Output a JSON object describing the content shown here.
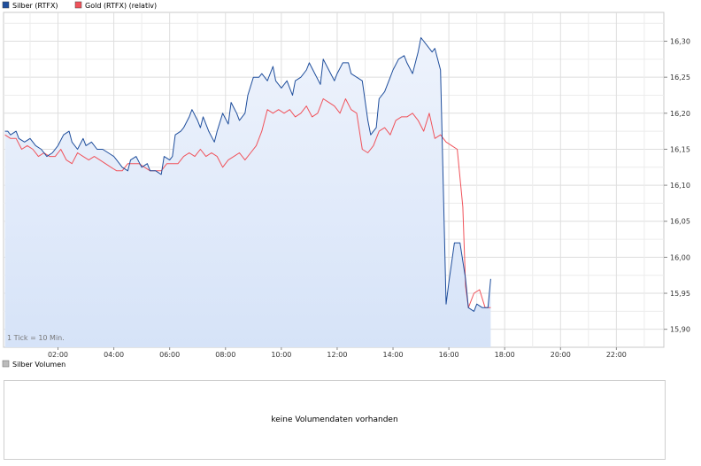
{
  "chart_data": {
    "type": "line",
    "legend": [
      {
        "label": "Silber (RTFX)",
        "color": "#1f4e9c"
      },
      {
        "label": "Gold (RTFX) (relativ)",
        "color": "#f0525a"
      }
    ],
    "x_ticks": [
      "02:00",
      "04:00",
      "06:00",
      "08:00",
      "10:00",
      "12:00",
      "14:00",
      "16:00",
      "18:00",
      "20:00",
      "22:00"
    ],
    "y_ticks": [
      "15,90",
      "15,95",
      "16,00",
      "16,05",
      "16,10",
      "16,15",
      "16,20",
      "16,25",
      "16,30"
    ],
    "ylim": [
      15.875,
      16.34
    ],
    "xlim_hours": [
      0.05,
      23.7
    ],
    "note": "1 Tick = 10 Min.",
    "area_fill_series": "Silber (RTFX)",
    "area_fill_color": "#d6e3f8",
    "grid": true,
    "series": [
      {
        "name": "Silber (RTFX)",
        "color": "#1f4e9c",
        "x": [
          0.1,
          0.2,
          0.3,
          0.5,
          0.6,
          0.8,
          1.0,
          1.2,
          1.4,
          1.6,
          1.8,
          2.0,
          2.2,
          2.4,
          2.5,
          2.7,
          2.9,
          3.0,
          3.2,
          3.4,
          3.6,
          3.8,
          4.0,
          4.1,
          4.3,
          4.5,
          4.6,
          4.8,
          5.0,
          5.2,
          5.3,
          5.5,
          5.7,
          5.8,
          6.0,
          6.1,
          6.2,
          6.4,
          6.5,
          6.7,
          6.8,
          7.0,
          7.1,
          7.2,
          7.4,
          7.6,
          7.7,
          7.9,
          8.1,
          8.2,
          8.4,
          8.5,
          8.7,
          8.8,
          9.0,
          9.2,
          9.3,
          9.5,
          9.7,
          9.8,
          10.0,
          10.2,
          10.4,
          10.5,
          10.7,
          10.9,
          11.0,
          11.2,
          11.4,
          11.5,
          11.7,
          11.9,
          12.0,
          12.2,
          12.4,
          12.5,
          12.7,
          12.9,
          13.1,
          13.2,
          13.4,
          13.5,
          13.7,
          13.9,
          14.0,
          14.2,
          14.4,
          14.5,
          14.7,
          14.9,
          15.0,
          15.2,
          15.4,
          15.5,
          15.7,
          15.9,
          16.0,
          16.2,
          16.4,
          16.6,
          16.7,
          16.9,
          17.0,
          17.2,
          17.4,
          17.5
        ],
        "y": [
          16.175,
          16.175,
          16.17,
          16.175,
          16.165,
          16.16,
          16.165,
          16.155,
          16.15,
          16.14,
          16.145,
          16.155,
          16.17,
          16.175,
          16.16,
          16.15,
          16.165,
          16.155,
          16.16,
          16.15,
          16.15,
          16.145,
          16.14,
          16.135,
          16.125,
          16.12,
          16.135,
          16.14,
          16.125,
          16.13,
          16.12,
          16.12,
          16.115,
          16.14,
          16.135,
          16.14,
          16.17,
          16.175,
          16.18,
          16.195,
          16.205,
          16.19,
          16.18,
          16.195,
          16.175,
          16.16,
          16.175,
          16.2,
          16.185,
          16.215,
          16.2,
          16.19,
          16.2,
          16.225,
          16.25,
          16.25,
          16.255,
          16.245,
          16.265,
          16.245,
          16.235,
          16.245,
          16.225,
          16.245,
          16.25,
          16.26,
          16.27,
          16.255,
          16.24,
          16.275,
          16.26,
          16.245,
          16.255,
          16.27,
          16.27,
          16.255,
          16.25,
          16.245,
          16.19,
          16.17,
          16.18,
          16.22,
          16.23,
          16.25,
          16.26,
          16.275,
          16.28,
          16.27,
          16.255,
          16.285,
          16.305,
          16.295,
          16.285,
          16.29,
          16.26,
          15.935,
          15.965,
          16.02,
          16.02,
          15.97,
          15.93,
          15.925,
          15.935,
          15.93,
          15.93,
          15.97
        ],
        "y_note": "silver values"
      },
      {
        "name": "Gold (RTFX) (relativ)",
        "color": "#f0525a",
        "x": [
          0.1,
          0.3,
          0.5,
          0.7,
          0.9,
          1.1,
          1.3,
          1.5,
          1.7,
          1.9,
          2.1,
          2.3,
          2.5,
          2.7,
          2.9,
          3.1,
          3.3,
          3.5,
          3.7,
          3.9,
          4.1,
          4.3,
          4.5,
          4.7,
          4.9,
          5.1,
          5.3,
          5.5,
          5.7,
          5.9,
          6.1,
          6.3,
          6.5,
          6.7,
          6.9,
          7.1,
          7.3,
          7.5,
          7.7,
          7.9,
          8.1,
          8.3,
          8.5,
          8.7,
          8.9,
          9.1,
          9.3,
          9.5,
          9.7,
          9.9,
          10.1,
          10.3,
          10.5,
          10.7,
          10.9,
          11.1,
          11.3,
          11.5,
          11.7,
          11.9,
          12.1,
          12.3,
          12.5,
          12.7,
          12.9,
          13.1,
          13.3,
          13.5,
          13.7,
          13.9,
          14.1,
          14.3,
          14.5,
          14.7,
          14.9,
          15.1,
          15.3,
          15.5,
          15.7,
          15.9,
          16.1,
          16.3,
          16.5,
          16.6,
          16.7,
          16.9,
          17.1,
          17.3,
          17.5
        ],
        "y": [
          16.17,
          16.165,
          16.165,
          16.15,
          16.155,
          16.15,
          16.14,
          16.145,
          16.14,
          16.14,
          16.15,
          16.135,
          16.13,
          16.145,
          16.14,
          16.135,
          16.14,
          16.135,
          16.13,
          16.125,
          16.12,
          16.12,
          16.13,
          16.13,
          16.13,
          16.125,
          16.12,
          16.12,
          16.12,
          16.13,
          16.13,
          16.13,
          16.14,
          16.145,
          16.14,
          16.15,
          16.14,
          16.145,
          16.14,
          16.125,
          16.135,
          16.14,
          16.145,
          16.135,
          16.145,
          16.155,
          16.175,
          16.205,
          16.2,
          16.205,
          16.2,
          16.205,
          16.195,
          16.2,
          16.21,
          16.195,
          16.2,
          16.22,
          16.215,
          16.21,
          16.2,
          16.22,
          16.205,
          16.2,
          16.15,
          16.145,
          16.155,
          16.175,
          16.18,
          16.17,
          16.19,
          16.195,
          16.195,
          16.2,
          16.19,
          16.175,
          16.2,
          16.165,
          16.17,
          16.16,
          16.155,
          16.15,
          16.07,
          15.96,
          15.93,
          15.95,
          15.955,
          15.93,
          15.93
        ],
        "y_note": "gold values relative to silver scale"
      }
    ]
  },
  "volume_panel": {
    "legend_label": "Silber Volumen",
    "legend_color": "#bbbbbb",
    "message": "keine Volumendaten vorhanden"
  }
}
